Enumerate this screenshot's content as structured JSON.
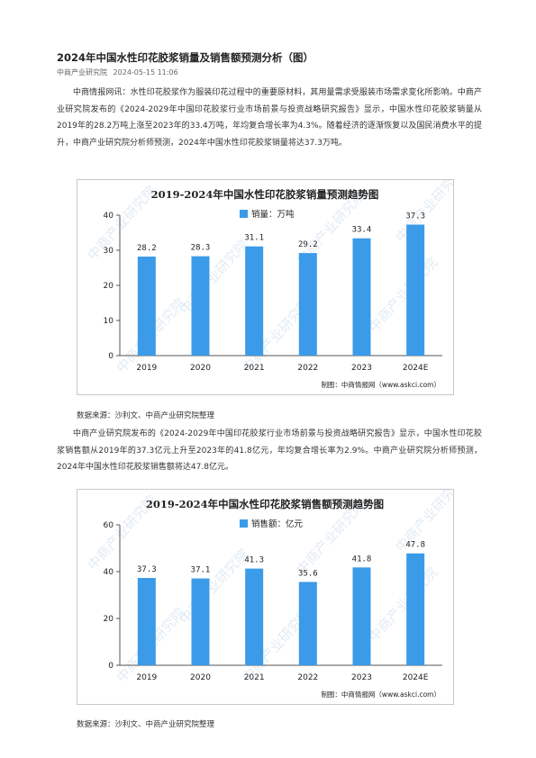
{
  "article": {
    "title": "2024年中国水性印花胶浆销量及销售额预测分析（图）",
    "source": "中商产业研究院",
    "datetime": "2024-05-15 11:06"
  },
  "paragraphs": [
    "中商情报网讯：水性印花胶浆作为服装印花过程中的重要原材料，其用量需求受服装市场需求变化所影响。中商产业研究院发布的《2024-2029年中国印花胶浆行业市场前景与投资战略研究报告》显示，中国水性印花胶浆销量从2019年的28.2万吨上涨至2023年的33.4万吨，年均复合增长率为4.3%。随着经济的逐渐恢复以及国民消费水平的提升，中商产业研究院分析师预测，2024年中国水性印花胶浆销量将达37.3万吨。",
    "中商产业研究院发布的《2024-2029年中国印花胶浆行业市场前景与投资战略研究报告》显示，中国水性印花胶浆销售额从2019年的37.3亿元上升至2023年的41.8亿元，年均复合增长率为2.9%。中商产业研究院分析师预测，2024年中国水性印花胶浆销售额将达47.8亿元。"
  ],
  "captions": [
    "数据来源：沙利文、中商产业研究院整理",
    "数据来源：沙利文、中商产业研究院整理"
  ],
  "watermark": "中商产业研究院",
  "colors": {
    "bar": "#3b9be8",
    "axis": "#555555",
    "text": "#222222",
    "watermark": "#dfe9f3"
  },
  "chart_data": [
    {
      "type": "bar",
      "title": "2019-2024年中国水性印花胶浆销量预测趋势图",
      "legend": "销量：万吨",
      "legend_position": "top-center",
      "categories": [
        "2019",
        "2020",
        "2021",
        "2022",
        "2023",
        "2024E"
      ],
      "series": [
        {
          "name": "销量：万吨",
          "values": [
            28.2,
            28.3,
            31.1,
            29.2,
            33.4,
            37.3
          ]
        }
      ],
      "value_labels": [
        "28.2",
        "28.3",
        "31.1",
        "29.2",
        "33.4",
        "37.3"
      ],
      "yticks": [
        "0",
        "10",
        "20",
        "30",
        "40"
      ],
      "ylim": [
        0,
        40
      ],
      "grid": false,
      "credit": "制图：中商情报网（www.askci.com）"
    },
    {
      "type": "bar",
      "title": "2019-2024年中国水性印花胶浆销售额预测趋势图",
      "legend": "销售额：亿元",
      "legend_position": "top-center",
      "categories": [
        "2019",
        "2020",
        "2021",
        "2022",
        "2023",
        "2024E"
      ],
      "series": [
        {
          "name": "销售额：亿元",
          "values": [
            37.3,
            37.1,
            41.3,
            35.6,
            41.8,
            47.8
          ]
        }
      ],
      "value_labels": [
        "37.3",
        "37.1",
        "41.3",
        "35.6",
        "41.8",
        "47.8"
      ],
      "yticks": [
        "0",
        "20",
        "40",
        "60"
      ],
      "ylim": [
        0,
        60
      ],
      "grid": false,
      "credit": "制图：中商情报网（www.askci.com）"
    }
  ]
}
